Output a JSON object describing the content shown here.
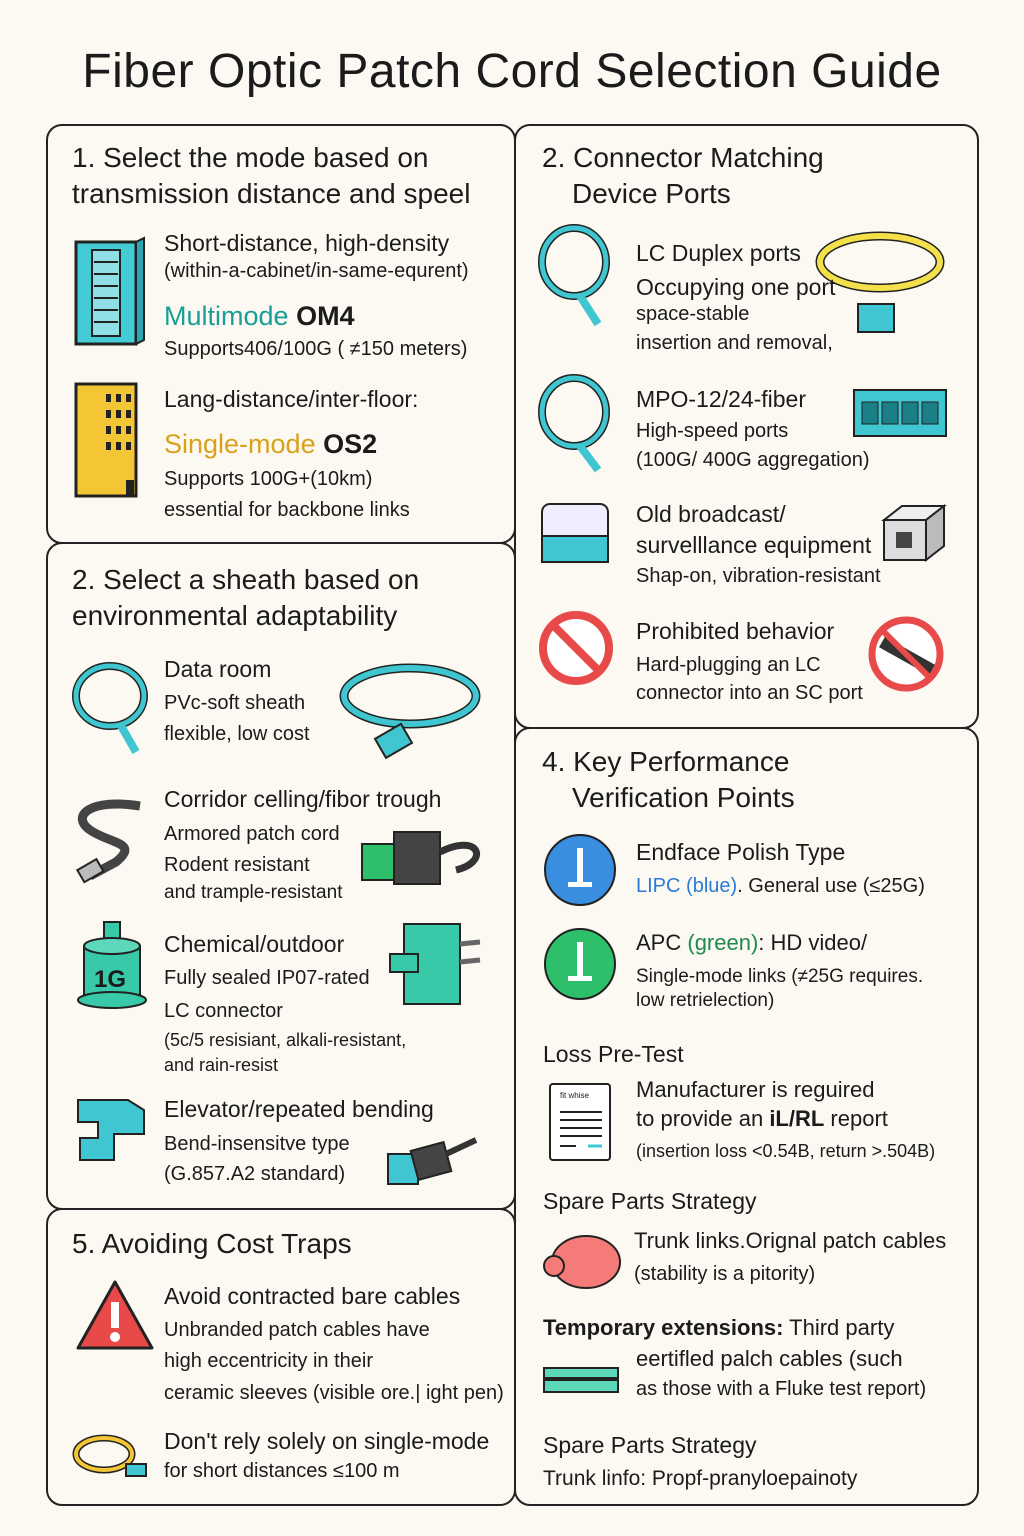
{
  "title": "Fiber Optic Patch Cord Selection Guide",
  "s1": {
    "heading1": "1. Select the mode based on",
    "heading2": "transmission distance and speel",
    "a_title": "Short-distance, high-density",
    "a_sub": "(within-a-cabinet/in-same-equrent)",
    "a_mode": "Multimode",
    "a_grade": "OM4",
    "a_desc": "Supports406/100G ( ≠150 meters)",
    "b_title": "Lang-distance/inter-floor:",
    "b_mode": "Single-mode",
    "b_grade": "OS2",
    "b_desc1": "Supports 100G+(10km)",
    "b_desc2": "essential for backbone links"
  },
  "s2": {
    "heading1": "2. Select a sheath based on",
    "heading2": "environmental adaptability",
    "items": [
      {
        "title": "Data room",
        "lines": [
          "PVc-soft sheath",
          "flexible, low cost"
        ]
      },
      {
        "title": "Corridor celling/fibor trough",
        "lines": [
          "Armored patch cord",
          "Rodent resistant",
          "and trample-resistant"
        ]
      },
      {
        "title": "Chemical/outdoor",
        "lines": [
          "Fully sealed IP07-rated",
          "LC connector",
          "(5c/5 resisiant, alkali-resistant,",
          "and rain-resist"
        ],
        "icon_label": "1G"
      },
      {
        "title": "Elevator/repeated bending",
        "lines": [
          "Bend-insensitve type",
          "(G.857.A2 standard)"
        ]
      }
    ]
  },
  "s5": {
    "heading": "5. Avoiding Cost Traps",
    "a_title": "Avoid contracted bare cables",
    "a_lines": [
      "Unbranded patch cables have",
      "high eccentricity in their",
      "ceramic sleeves (visible ore.| ight pen)"
    ],
    "b_title": "Don't rely solely on single-mode",
    "b_line": "for short distances ≤100 m"
  },
  "r1": {
    "heading1": "2. Connector Matching",
    "heading2": "Device Ports",
    "items": [
      {
        "title": "LC Duplex ports",
        "lines": [
          "Occupying one port",
          "space-stable",
          "insertion and removal,"
        ]
      },
      {
        "title": "MPO-12/24-fiber",
        "lines": [
          "High-speed ports",
          "(100G/ 400G aggregation)"
        ]
      },
      {
        "title": "Old broadcast/",
        "title2": "survelllance equipment",
        "lines": [
          "Shap-on, vibration-resistant"
        ]
      },
      {
        "title": "Prohibited behavior",
        "lines": [
          "Hard-plugging an LC",
          "connector into an SC port"
        ]
      }
    ]
  },
  "r2": {
    "heading1": "4. Key Performance",
    "heading2": "Verification Points",
    "polish_title": "Endface Polish Type",
    "upc": "LIPC",
    "upc_color": "(blue)",
    "upc_rest": ". General use (≤25G)",
    "apc": "APC",
    "apc_color": "(green)",
    "apc_rest": ": HD video/",
    "apc_l1": "Single-mode links (≠25G requires.",
    "apc_l2": "low retrielection)",
    "loss_heading": "Loss Pre-Test",
    "doc_label": "fit whise",
    "loss_l1": "Manufacturer is reguired",
    "loss_l2a": "to provide an ",
    "loss_l2b": "iL/RL",
    "loss_l2c": " report",
    "loss_l3": "(insertion loss <0.54B, return >.504B)",
    "spare_heading": "Spare Parts Strategy",
    "trunk_a": "Trunk",
    "trunk_b": " links.Orignal patch cables",
    "trunk_l2": "(stability is a pitority)",
    "temp_a": "Temporary extensions:",
    "temp_b": " Third party",
    "temp_l2": "eertifled palch cables (such",
    "temp_l3": "as those with a Fluke test report)",
    "spare2_heading": "Spare Parts Strategy",
    "spare2_line": "Trunk linfo:  Propf-pranyloepainoty"
  },
  "colors": {
    "teal": "#1a9e96",
    "gold": "#d8a21a",
    "cyan": "#3fc6d0",
    "red": "#e84a4a",
    "blue": "#3a8ee0",
    "green": "#2dbf6a"
  }
}
